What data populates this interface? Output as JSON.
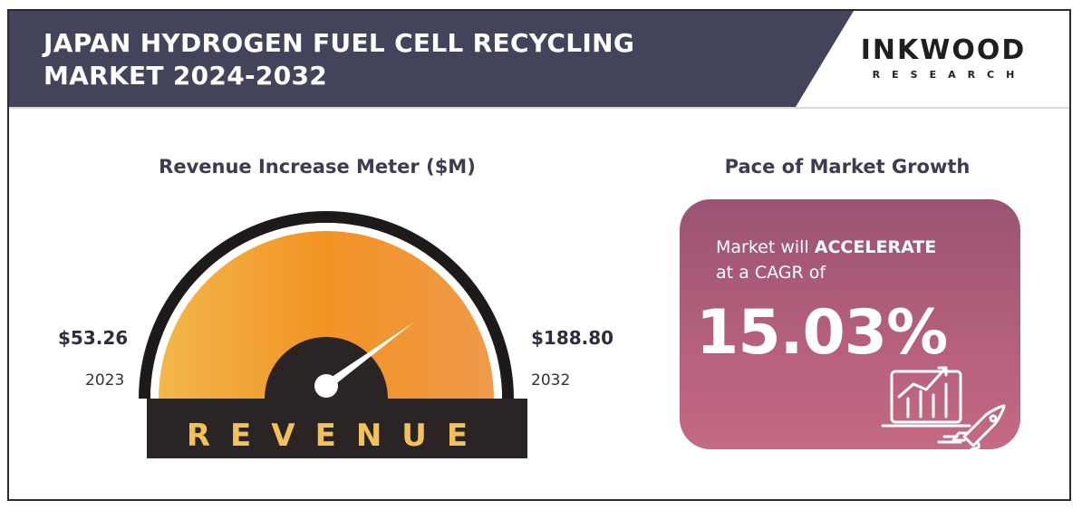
{
  "header": {
    "title_line1": "JAPAN HYDROGEN FUEL CELL RECYCLING",
    "title_line2": "MARKET 2024-2032",
    "brand_name": "INKWOOD",
    "brand_sub": "RESEARCH"
  },
  "meter": {
    "title": "Revenue Increase Meter ($M)",
    "start_value": "$53.26",
    "start_year": "2023",
    "end_value": "$188.80",
    "end_year": "2032",
    "band_label": "REVENUE",
    "needle_level": 0.8
  },
  "growth": {
    "title": "Pace of Market Growth",
    "line1_prefix": "Market will ",
    "line1_emphasis": "ACCELERATE",
    "line2": "at a CAGR of",
    "cagr": "15.03%",
    "icon": "chart-growth-rocket-icon"
  },
  "colors": {
    "header_bg": "#43435c",
    "gauge_orange": "#f29a2e",
    "gauge_dark": "#2b2424",
    "gauge_label": "#f2c15a",
    "card_gradient_top": "#9a5473",
    "card_gradient_bottom": "#c46a84"
  }
}
